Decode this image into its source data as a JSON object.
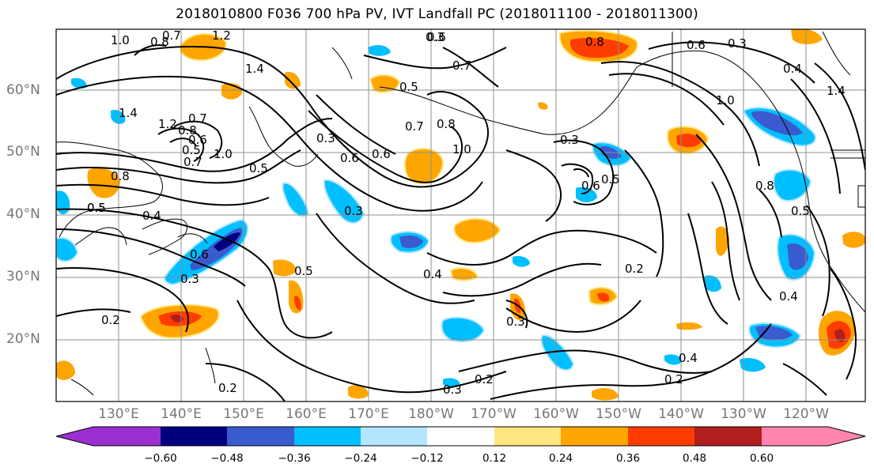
{
  "title": "2018010800 F036 700 hPa PV, IVT Landfall PC (2018011100 - 2018011300)",
  "lat_labels": [
    "60°N",
    "50°N",
    "40°N",
    "30°N",
    "20°N"
  ],
  "lon_labels": [
    "130°E",
    "140°E",
    "150°E",
    "160°E",
    "170°E",
    "180°W",
    "170°W",
    "160°W",
    "150°W",
    "140°W",
    "130°W",
    "120°W"
  ],
  "colorbar": {
    "labels": [
      "−0.60",
      "−0.48",
      "−0.36",
      "−0.24",
      "−0.12",
      "0.12",
      "0.24",
      "0.36",
      "0.48",
      "0.60"
    ],
    "colors": [
      "#9b30d0",
      "#00007f",
      "#3a5bcf",
      "#00bfff",
      "#b3e5ff",
      "#ffffff",
      "#ffe680",
      "#ffa500",
      "#ff3c00",
      "#b01e1e",
      "#ff85b0"
    ]
  },
  "contour_labels": [
    "1.0",
    "0.8",
    "0.7",
    "1.2",
    "1.4",
    "1.4",
    "1.2",
    "0.8",
    "0.7",
    "0.5",
    "0.6",
    "0.7",
    "0.5",
    "0.8",
    "0.5",
    "0.3",
    "1.0",
    "0.6",
    "0.3",
    "0.5",
    "0.6",
    "0.7",
    "0.8",
    "1.0",
    "0.6",
    "0.7",
    "0.3",
    "0.5",
    "0.6",
    "0.5",
    "0.4",
    "0.6",
    "0.3",
    "0.2",
    "0.5",
    "0.4",
    "0.2",
    "0.3",
    "0.2",
    "0.3",
    "0.2",
    "0.4",
    "0.2",
    "0.8",
    "0.3",
    "0.4",
    "0.3",
    "0.4",
    "0.5",
    "0.6",
    "0.8",
    "1.0",
    "1.4"
  ]
}
